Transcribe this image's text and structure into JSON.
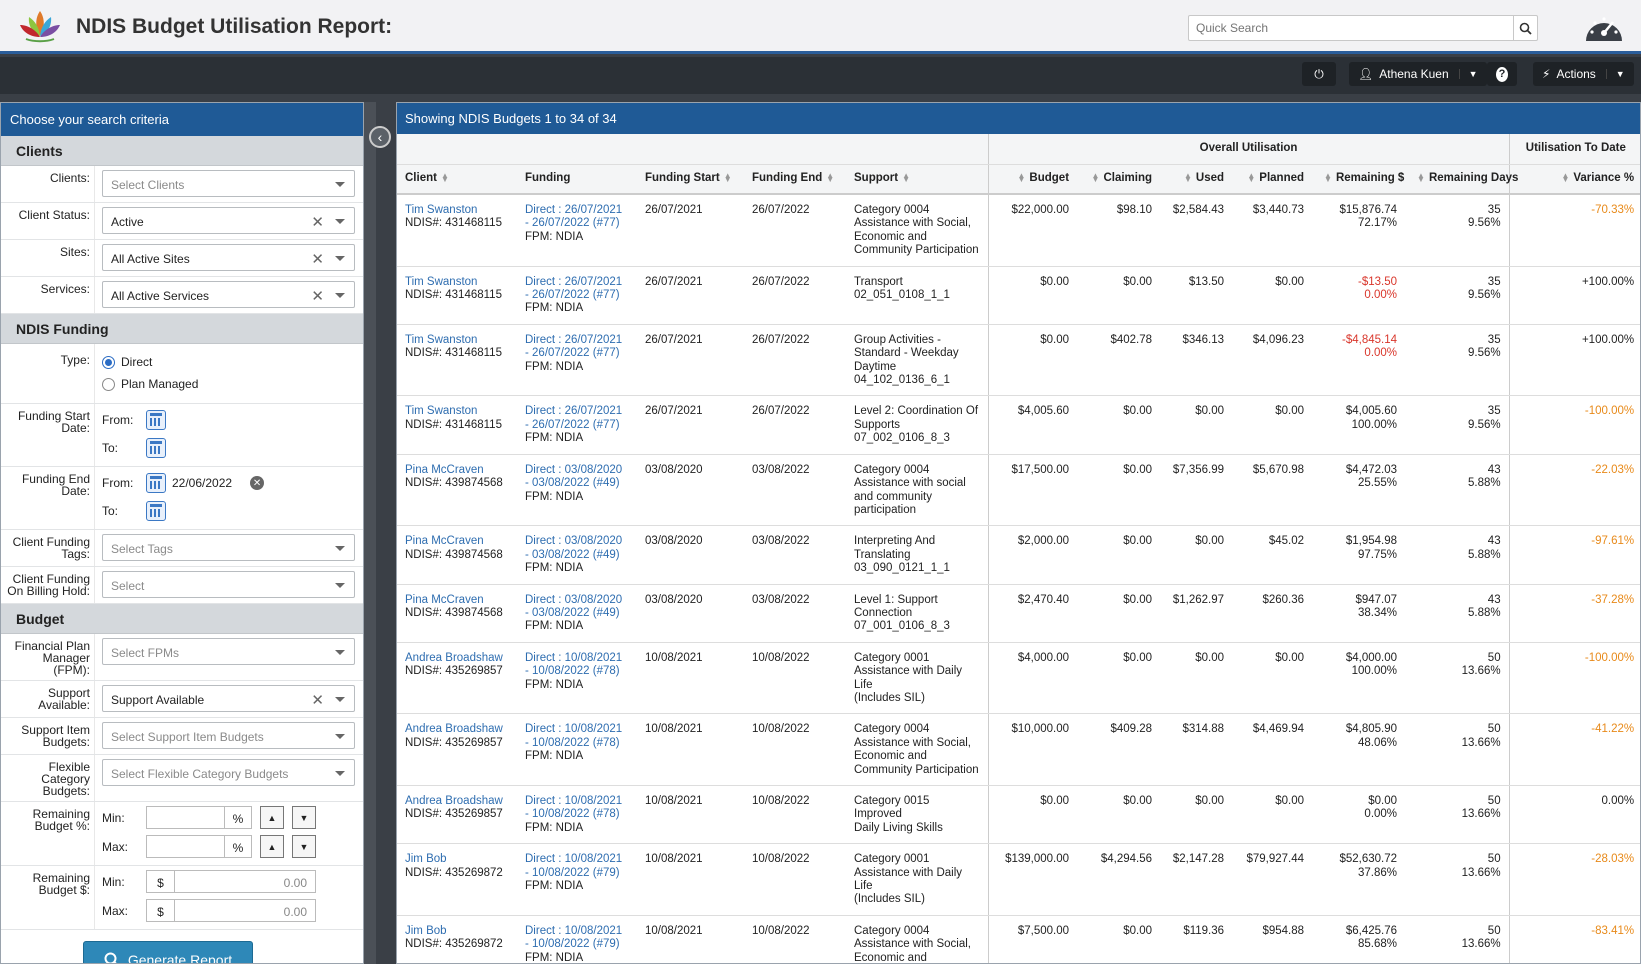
{
  "app": {
    "title": "NDIS Budget Utilisation Report:",
    "search_placeholder": "Quick Search"
  },
  "toolbar": {
    "user": "Athena Kuen",
    "actions_label": "Actions"
  },
  "sidebar": {
    "title": "Choose your search criteria",
    "clients_section": "Clients",
    "clients": {
      "label": "Clients:",
      "placeholder": "Select Clients"
    },
    "client_status": {
      "label": "Client Status:",
      "value": "Active"
    },
    "sites": {
      "label": "Sites:",
      "value": "All Active Sites"
    },
    "services": {
      "label": "Services:",
      "value": "All Active Services"
    },
    "funding_section": "NDIS Funding",
    "type": {
      "label": "Type:",
      "options": [
        "Direct",
        "Plan Managed"
      ]
    },
    "funding_start": {
      "label": "Funding Start Date:",
      "from": "From:",
      "to": "To:"
    },
    "funding_end": {
      "label": "Funding End Date:",
      "from": "From:",
      "from_value": "22/06/2022",
      "to": "To:"
    },
    "tags": {
      "label": "Client Funding Tags:",
      "placeholder": "Select Tags"
    },
    "billing_hold": {
      "label": "Client Funding On Billing Hold:",
      "placeholder": "Select"
    },
    "budget_section": "Budget",
    "fpm": {
      "label": "Financial Plan Manager (FPM):",
      "placeholder": "Select FPMs"
    },
    "support_available": {
      "label": "Support Available:",
      "value": "Support Available"
    },
    "support_item": {
      "label": "Support Item Budgets:",
      "placeholder": "Select Support Item Budgets"
    },
    "flexible": {
      "label": "Flexible Category Budgets:",
      "placeholder": "Select Flexible Category Budgets"
    },
    "remaining_pct": {
      "label": "Remaining Budget %:",
      "min": "Min:",
      "max": "Max:",
      "unit": "%"
    },
    "remaining_amt": {
      "label": "Remaining Budget $:",
      "min": "Min:",
      "max": "Max:",
      "unit": "$",
      "min_placeholder": "0.00",
      "max_placeholder": "0.00"
    },
    "generate": "Generate Report"
  },
  "report": {
    "summary": "Showing NDIS Budgets 1 to 34 of 34",
    "group_overall": "Overall Utilisation",
    "group_to_date": "Utilisation To Date",
    "columns": [
      "Client",
      "Funding",
      "Funding Start",
      "Funding End",
      "Support",
      "Budget",
      "Claiming",
      "Used",
      "Planned",
      "Remaining $",
      "Remaining Days",
      "Variance %"
    ],
    "rows": [
      {
        "client": "Tim Swanston",
        "ndis": "NDIS#: 431468115",
        "funding": "Direct : 26/07/2021 - 26/07/2022 (#77)",
        "fpm": "FPM: NDIA",
        "start": "26/07/2021",
        "end": "26/07/2022",
        "support": [
          "Category 0004",
          "Assistance with Social,",
          "Economic and",
          "Community Participation"
        ],
        "budget": "$22,000.00",
        "claiming": "$98.10",
        "used": "$2,584.43",
        "planned": "$3,440.73",
        "rem": "$15,876.74",
        "rem_pct": "72.17%",
        "rem_neg": false,
        "days": "35",
        "days_pct": "9.56%",
        "variance": "-70.33%",
        "var_color": "orange"
      },
      {
        "client": "Tim Swanston",
        "ndis": "NDIS#: 431468115",
        "funding": "Direct : 26/07/2021 - 26/07/2022 (#77)",
        "fpm": "FPM: NDIA",
        "start": "26/07/2021",
        "end": "26/07/2022",
        "support": [
          "Transport",
          "02_051_0108_1_1"
        ],
        "budget": "$0.00",
        "claiming": "$0.00",
        "used": "$13.50",
        "planned": "$0.00",
        "rem": "-$13.50",
        "rem_pct": "0.00%",
        "rem_neg": true,
        "days": "35",
        "days_pct": "9.56%",
        "variance": "+100.00%",
        "var_color": "black"
      },
      {
        "client": "Tim Swanston",
        "ndis": "NDIS#: 431468115",
        "funding": "Direct : 26/07/2021 - 26/07/2022 (#77)",
        "fpm": "FPM: NDIA",
        "start": "26/07/2021",
        "end": "26/07/2022",
        "support": [
          "Group Activities -",
          "Standard - Weekday",
          "Daytime",
          "04_102_0136_6_1"
        ],
        "budget": "$0.00",
        "claiming": "$402.78",
        "used": "$346.13",
        "planned": "$4,096.23",
        "rem": "-$4,845.14",
        "rem_pct": "0.00%",
        "rem_neg": true,
        "days": "35",
        "days_pct": "9.56%",
        "variance": "+100.00%",
        "var_color": "black"
      },
      {
        "client": "Tim Swanston",
        "ndis": "NDIS#: 431468115",
        "funding": "Direct : 26/07/2021 - 26/07/2022 (#77)",
        "fpm": "FPM: NDIA",
        "start": "26/07/2021",
        "end": "26/07/2022",
        "support": [
          "Level 2: Coordination Of",
          "Supports",
          "07_002_0106_8_3"
        ],
        "budget": "$4,005.60",
        "claiming": "$0.00",
        "used": "$0.00",
        "planned": "$0.00",
        "rem": "$4,005.60",
        "rem_pct": "100.00%",
        "rem_neg": false,
        "days": "35",
        "days_pct": "9.56%",
        "variance": "-100.00%",
        "var_color": "orange"
      },
      {
        "client": "Pina McCraven",
        "ndis": "NDIS#: 439874568",
        "funding": "Direct : 03/08/2020 - 03/08/2022 (#49)",
        "fpm": "FPM: NDIA",
        "start": "03/08/2020",
        "end": "03/08/2022",
        "support": [
          "Category 0004",
          "Assistance with social",
          "and community",
          "participation"
        ],
        "budget": "$17,500.00",
        "claiming": "$0.00",
        "used": "$7,356.99",
        "planned": "$5,670.98",
        "rem": "$4,472.03",
        "rem_pct": "25.55%",
        "rem_neg": false,
        "days": "43",
        "days_pct": "5.88%",
        "variance": "-22.03%",
        "var_color": "orange"
      },
      {
        "client": "Pina McCraven",
        "ndis": "NDIS#: 439874568",
        "funding": "Direct : 03/08/2020 - 03/08/2022 (#49)",
        "fpm": "FPM: NDIA",
        "start": "03/08/2020",
        "end": "03/08/2022",
        "support": [
          "Interpreting And",
          "Translating",
          "03_090_0121_1_1"
        ],
        "budget": "$2,000.00",
        "claiming": "$0.00",
        "used": "$0.00",
        "planned": "$45.02",
        "rem": "$1,954.98",
        "rem_pct": "97.75%",
        "rem_neg": false,
        "days": "43",
        "days_pct": "5.88%",
        "variance": "-97.61%",
        "var_color": "orange"
      },
      {
        "client": "Pina McCraven",
        "ndis": "NDIS#: 439874568",
        "funding": "Direct : 03/08/2020 - 03/08/2022 (#49)",
        "fpm": "FPM: NDIA",
        "start": "03/08/2020",
        "end": "03/08/2022",
        "support": [
          "Level 1: Support",
          "Connection",
          "07_001_0106_8_3"
        ],
        "budget": "$2,470.40",
        "claiming": "$0.00",
        "used": "$1,262.97",
        "planned": "$260.36",
        "rem": "$947.07",
        "rem_pct": "38.34%",
        "rem_neg": false,
        "days": "43",
        "days_pct": "5.88%",
        "variance": "-37.28%",
        "var_color": "orange"
      },
      {
        "client": "Andrea Broadshaw",
        "ndis": "NDIS#: 435269857",
        "funding": "Direct : 10/08/2021 - 10/08/2022 (#78)",
        "fpm": "FPM: NDIA",
        "start": "10/08/2021",
        "end": "10/08/2022",
        "support": [
          "Category 0001",
          "Assistance with Daily Life",
          "(Includes SIL)"
        ],
        "budget": "$4,000.00",
        "claiming": "$0.00",
        "used": "$0.00",
        "planned": "$0.00",
        "rem": "$4,000.00",
        "rem_pct": "100.00%",
        "rem_neg": false,
        "days": "50",
        "days_pct": "13.66%",
        "variance": "-100.00%",
        "var_color": "orange"
      },
      {
        "client": "Andrea Broadshaw",
        "ndis": "NDIS#: 435269857",
        "funding": "Direct : 10/08/2021 - 10/08/2022 (#78)",
        "fpm": "FPM: NDIA",
        "start": "10/08/2021",
        "end": "10/08/2022",
        "support": [
          "Category 0004",
          "Assistance with Social,",
          "Economic and",
          "Community Participation"
        ],
        "budget": "$10,000.00",
        "claiming": "$409.28",
        "used": "$314.88",
        "planned": "$4,469.94",
        "rem": "$4,805.90",
        "rem_pct": "48.06%",
        "rem_neg": false,
        "days": "50",
        "days_pct": "13.66%",
        "variance": "-41.22%",
        "var_color": "orange"
      },
      {
        "client": "Andrea Broadshaw",
        "ndis": "NDIS#: 435269857",
        "funding": "Direct : 10/08/2021 - 10/08/2022 (#78)",
        "fpm": "FPM: NDIA",
        "start": "10/08/2021",
        "end": "10/08/2022",
        "support": [
          "Category 0015 Improved",
          "Daily Living Skills"
        ],
        "budget": "$0.00",
        "claiming": "$0.00",
        "used": "$0.00",
        "planned": "$0.00",
        "rem": "$0.00",
        "rem_pct": "0.00%",
        "rem_neg": false,
        "days": "50",
        "days_pct": "13.66%",
        "variance": "0.00%",
        "var_color": "black"
      },
      {
        "client": "Jim Bob",
        "ndis": "NDIS#: 435269872",
        "funding": "Direct : 10/08/2021 - 10/08/2022 (#79)",
        "fpm": "FPM: NDIA",
        "start": "10/08/2021",
        "end": "10/08/2022",
        "support": [
          "Category 0001",
          "Assistance with Daily Life",
          "(Includes SIL)"
        ],
        "budget": "$139,000.00",
        "claiming": "$4,294.56",
        "used": "$2,147.28",
        "planned": "$79,927.44",
        "rem": "$52,630.72",
        "rem_pct": "37.86%",
        "rem_neg": false,
        "days": "50",
        "days_pct": "13.66%",
        "variance": "-28.03%",
        "var_color": "orange"
      },
      {
        "client": "Jim Bob",
        "ndis": "NDIS#: 435269872",
        "funding": "Direct : 10/08/2021 - 10/08/2022 (#79)",
        "fpm": "FPM: NDIA",
        "start": "10/08/2021",
        "end": "10/08/2022",
        "support": [
          "Category 0004",
          "Assistance with Social,",
          "Economic and",
          "Community Participation"
        ],
        "budget": "$7,500.00",
        "claiming": "$0.00",
        "used": "$119.36",
        "planned": "$954.88",
        "rem": "$6,425.76",
        "rem_pct": "85.68%",
        "rem_neg": false,
        "days": "50",
        "days_pct": "13.66%",
        "variance": "-83.41%",
        "var_color": "orange"
      }
    ]
  }
}
